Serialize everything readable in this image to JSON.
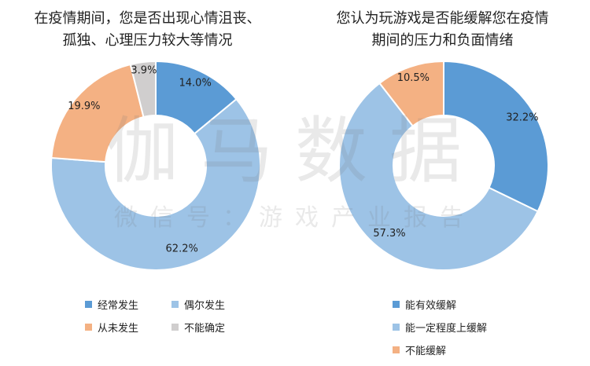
{
  "chart_data": [
    {
      "type": "pie",
      "title_lines": [
        "在疫情期间，您是否出现心情沮丧、",
        "孤独、心理压力较大等情况"
      ],
      "slices": [
        {
          "label": "经常发生",
          "value": 14.0,
          "display": "14.0%",
          "color": "#5b9bd5"
        },
        {
          "label": "偶尔发生",
          "value": 62.2,
          "display": "62.2%",
          "color": "#9dc3e6"
        },
        {
          "label": "从未发生",
          "value": 19.9,
          "display": "19.9%",
          "color": "#f4b183"
        },
        {
          "label": "不能确定",
          "value": 3.9,
          "display": "3.9%",
          "color": "#d0cece"
        }
      ],
      "legend_placement": "bottom"
    },
    {
      "type": "pie",
      "title_lines": [
        "您认为玩游戏是否能缓解您在疫情",
        "期间的压力和负面情绪"
      ],
      "slices": [
        {
          "label": "能有效缓解",
          "value": 32.2,
          "display": "32.2%",
          "color": "#5b9bd5"
        },
        {
          "label": "能一定程度上缓解",
          "value": 57.3,
          "display": "57.3%",
          "color": "#9dc3e6"
        },
        {
          "label": "不能缓解",
          "value": 10.5,
          "display": "10.5%",
          "color": "#f4b183"
        }
      ],
      "legend_placement": "bottom"
    }
  ],
  "watermark": {
    "main": "伽马数据",
    "sub": "微信号：游戏产业报告"
  }
}
